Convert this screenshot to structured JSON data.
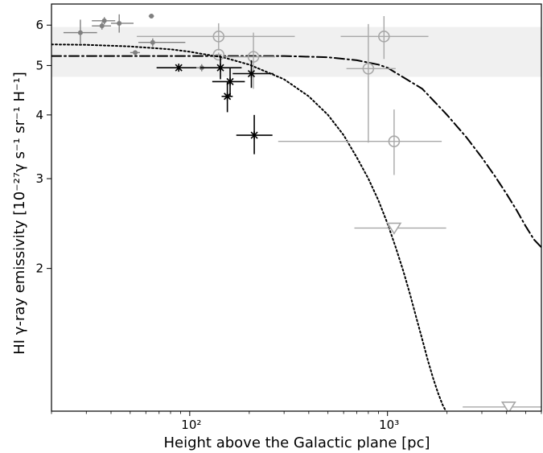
{
  "chart_data": {
    "type": "scatter",
    "xlabel": "Height above the Galactic plane [pc]",
    "ylabel": "HI γ-ray emissivity [10⁻²⁷γ s⁻¹ sr⁻¹ H⁻¹]",
    "x_scale": "log",
    "y_scale": "log",
    "xlim": [
      20,
      6000
    ],
    "ylim": [
      1.05,
      6.6
    ],
    "x_ticks": [
      {
        "value": 100,
        "label": "10²"
      },
      {
        "value": 1000,
        "label": "10³"
      }
    ],
    "y_ticks": [
      {
        "value": 2,
        "label": "2"
      },
      {
        "value": 3,
        "label": "3"
      },
      {
        "value": 4,
        "label": "4"
      },
      {
        "value": 5,
        "label": "5"
      },
      {
        "value": 6,
        "label": "6"
      }
    ],
    "band": {
      "ymin": 4.75,
      "ymax": 5.95,
      "color": "#f0f0f0"
    },
    "series": [
      {
        "marker": "dot",
        "color": "#808080",
        "points": [
          {
            "x": 28,
            "y": 5.8,
            "xerr": [
              5,
              6
            ],
            "yerr": [
              0.3,
              0.35
            ]
          },
          {
            "x": 37,
            "y": 6.12,
            "xerr": [
              5,
              5
            ],
            "yerr": [
              0.1,
              0.1
            ]
          },
          {
            "x": 36,
            "y": 5.98,
            "xerr": [
              4,
              4
            ],
            "yerr": [
              0.1,
              0.1
            ]
          },
          {
            "x": 44,
            "y": 6.05,
            "xerr": [
              4,
              8
            ],
            "yerr": [
              0.25,
              0.25
            ]
          },
          {
            "x": 64,
            "y": 6.25,
            "xerr": [
              2,
              2
            ],
            "yerr": [
              0.03,
              0.03
            ]
          },
          {
            "x": 65,
            "y": 5.55,
            "xerr": [
              10,
              30
            ],
            "yerr": [
              0.1,
              0.1
            ]
          },
          {
            "x": 53,
            "y": 5.3,
            "xerr": [
              3,
              3
            ],
            "yerr": [
              0.05,
              0.05
            ]
          },
          {
            "x": 115,
            "y": 4.95,
            "xerr": [
              10,
              15
            ],
            "yerr": [
              0.08,
              0.08
            ]
          }
        ]
      },
      {
        "marker": "open-circle",
        "color": "#a8a8a8",
        "points": [
          {
            "x": 140,
            "y": 5.7,
            "xerr": [
              86,
              200
            ],
            "yerr": [
              0.35,
              0.35
            ]
          },
          {
            "x": 960,
            "y": 5.7,
            "xerr": [
              380,
              650
            ],
            "yerr": [
              0.55,
              0.55
            ]
          },
          {
            "x": 800,
            "y": 4.93,
            "xerr": [
              180,
              300
            ],
            "yerr": [
              1.4,
              1.1
            ]
          },
          {
            "x": 1080,
            "y": 3.55,
            "xerr": [
              800,
              800
            ],
            "yerr": [
              0.5,
              0.55
            ]
          },
          {
            "x": 210,
            "y": 5.2,
            "xerr": [
              60,
              60
            ],
            "yerr": [
              0.7,
              0.6
            ]
          },
          {
            "x": 140,
            "y": 5.25,
            "xerr": [
              5,
              5
            ],
            "yerr": [
              0.05,
              0.05
            ]
          }
        ]
      },
      {
        "marker": "cross",
        "color": "#000000",
        "points": [
          {
            "x": 88,
            "y": 4.95,
            "xerr": [
              20,
              20
            ],
            "yerr": [
              0.03,
              0.03
            ]
          },
          {
            "x": 143,
            "y": 4.95,
            "xerr": [
              30,
              40
            ],
            "yerr": [
              0.25,
              0.25
            ]
          },
          {
            "x": 160,
            "y": 4.65,
            "xerr": [
              30,
              30
            ],
            "yerr": [
              0.3,
              0.3
            ]
          },
          {
            "x": 155,
            "y": 4.35,
            "xerr": [
              10,
              10
            ],
            "yerr": [
              0.3,
              0.3
            ]
          },
          {
            "x": 205,
            "y": 4.82,
            "xerr": [
              40,
              60
            ],
            "yerr": [
              0.3,
              0.3
            ]
          },
          {
            "x": 212,
            "y": 3.65,
            "xerr": [
              40,
              50
            ],
            "yerr": [
              0.3,
              0.35
            ]
          }
        ]
      },
      {
        "marker": "open-triangle-down",
        "color": "#a8a8a8",
        "points": [
          {
            "x": 1080,
            "y": 2.4,
            "xerr": [
              400,
              900
            ],
            "yerr": [
              0,
              0
            ]
          },
          {
            "x": 4100,
            "y": 1.07,
            "xerr": [
              1700,
              2900
            ],
            "yerr": [
              0,
              0
            ]
          }
        ]
      }
    ],
    "curves": [
      {
        "style": "dotted",
        "color": "#000000",
        "x": [
          20,
          30,
          50,
          80,
          100,
          150,
          200,
          300,
          400,
          500,
          600,
          700,
          800,
          900,
          1000,
          1100,
          1200,
          1300,
          1400,
          1500,
          1600,
          1700,
          1800,
          1900,
          2000,
          2050
        ],
        "y": [
          5.5,
          5.49,
          5.45,
          5.38,
          5.32,
          5.18,
          5.02,
          4.7,
          4.35,
          4.0,
          3.65,
          3.3,
          3.0,
          2.72,
          2.45,
          2.2,
          1.98,
          1.78,
          1.6,
          1.45,
          1.32,
          1.22,
          1.14,
          1.08,
          1.04,
          1.02
        ]
      },
      {
        "style": "dashdot",
        "color": "#000000",
        "x": [
          20,
          100,
          300,
          500,
          700,
          900,
          1000,
          1500,
          2000,
          2500,
          3000,
          3500,
          4000,
          4500,
          5000,
          5500,
          6000
        ],
        "y": [
          5.22,
          5.22,
          5.22,
          5.19,
          5.12,
          5.02,
          4.95,
          4.5,
          4.0,
          3.62,
          3.3,
          3.03,
          2.8,
          2.6,
          2.42,
          2.28,
          2.2
        ]
      }
    ]
  }
}
